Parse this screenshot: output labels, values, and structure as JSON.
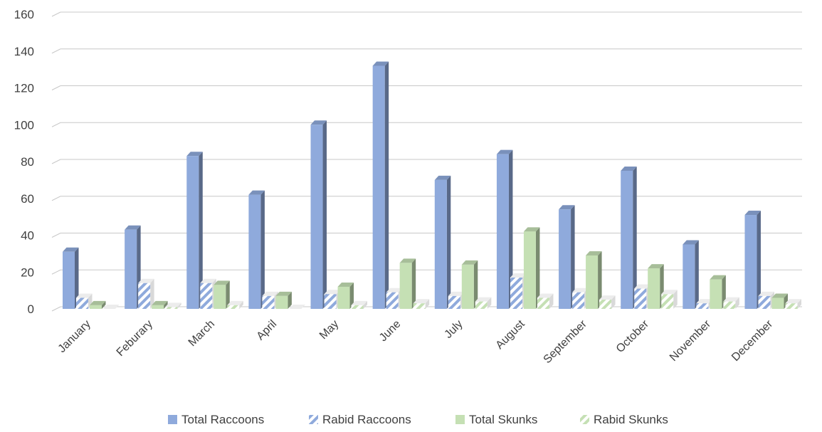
{
  "chart_data": {
    "type": "bar",
    "title": "",
    "xlabel": "",
    "ylabel": "",
    "ylim": [
      0,
      160
    ],
    "yticks": [
      0,
      20,
      40,
      60,
      80,
      100,
      120,
      140,
      160
    ],
    "grid": true,
    "legend_position": "bottom",
    "categories": [
      "January",
      "Feburary",
      "March",
      "April",
      "May",
      "June",
      "July",
      "August",
      "September",
      "October",
      "November",
      "December"
    ],
    "series": [
      {
        "name": "Total Raccoons",
        "color": "#8faadc",
        "pattern": "solid",
        "values": [
          31,
          43,
          83,
          62,
          100,
          132,
          70,
          84,
          54,
          75,
          35,
          51
        ]
      },
      {
        "name": "Rabid Raccoons",
        "color": "#8faadc",
        "pattern": "hatched",
        "values": [
          6,
          14,
          14,
          7,
          8,
          9,
          7,
          17,
          9,
          11,
          3,
          7
        ]
      },
      {
        "name": "Total Skunks",
        "color": "#c5e0b4",
        "pattern": "solid",
        "values": [
          2,
          2,
          13,
          7,
          12,
          25,
          24,
          42,
          29,
          22,
          16,
          6
        ]
      },
      {
        "name": "Rabid Skunks",
        "color": "#c5e0b4",
        "pattern": "hatched",
        "values": [
          0,
          1,
          2,
          0,
          2,
          3,
          4,
          6,
          5,
          8,
          4,
          3
        ]
      }
    ]
  }
}
